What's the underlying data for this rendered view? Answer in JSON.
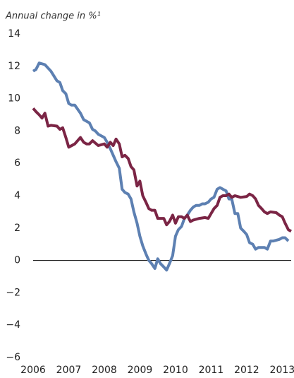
{
  "chart_data": {
    "type": "line",
    "subtitle": "Annual change in %¹",
    "xlim": [
      2006,
      2013.25
    ],
    "xticks": [
      2006,
      2007,
      2008,
      2009,
      2010,
      2011,
      2012,
      2013
    ],
    "ylim": [
      -6,
      14
    ],
    "yticks": [
      {
        "value": -6,
        "label": "−6"
      },
      {
        "value": -4,
        "label": "−4"
      },
      {
        "value": -2,
        "label": "−2"
      },
      0,
      2,
      4,
      6,
      8,
      10,
      12,
      14
    ],
    "zero_line": true,
    "series": [
      {
        "color": "#5d80b2",
        "x": [
          2006.0,
          2006.08,
          2006.17,
          2006.33,
          2006.5,
          2006.67,
          2006.75,
          2006.83,
          2006.92,
          2007.0,
          2007.08,
          2007.17,
          2007.33,
          2007.42,
          2007.58,
          2007.67,
          2007.75,
          2007.83,
          2008.0,
          2008.08,
          2008.17,
          2008.25,
          2008.33,
          2008.42,
          2008.5,
          2008.58,
          2008.67,
          2008.75,
          2008.83,
          2008.92,
          2009.0,
          2009.08,
          2009.17,
          2009.25,
          2009.33,
          2009.42,
          2009.5,
          2009.58,
          2009.67,
          2009.75,
          2009.83,
          2009.92,
          2010.0,
          2010.08,
          2010.17,
          2010.25,
          2010.33,
          2010.42,
          2010.5,
          2010.58,
          2010.67,
          2010.75,
          2010.83,
          2010.92,
          2011.0,
          2011.08,
          2011.17,
          2011.25,
          2011.33,
          2011.42,
          2011.5,
          2011.58,
          2011.67,
          2011.75,
          2011.83,
          2011.92,
          2012.0,
          2012.08,
          2012.17,
          2012.25,
          2012.33,
          2012.5,
          2012.58,
          2012.67,
          2012.75,
          2012.92,
          2013.0,
          2013.08,
          2013.17
        ],
        "values": [
          11.7,
          11.8,
          12.2,
          12.1,
          11.7,
          11.1,
          11.0,
          10.5,
          10.3,
          9.7,
          9.6,
          9.6,
          9.1,
          8.7,
          8.5,
          8.1,
          8.0,
          7.8,
          7.6,
          7.3,
          6.9,
          6.5,
          6.1,
          5.7,
          4.4,
          4.2,
          4.1,
          3.8,
          3.0,
          2.3,
          1.5,
          0.9,
          0.4,
          0.0,
          -0.2,
          -0.5,
          0.1,
          -0.2,
          -0.4,
          -0.6,
          -0.2,
          0.3,
          1.5,
          1.9,
          2.1,
          2.6,
          2.8,
          3.1,
          3.3,
          3.4,
          3.4,
          3.5,
          3.5,
          3.6,
          3.8,
          3.9,
          4.4,
          4.5,
          4.4,
          4.3,
          3.8,
          3.8,
          2.9,
          2.9,
          2.0,
          1.8,
          1.6,
          1.1,
          1.0,
          0.7,
          0.8,
          0.8,
          0.7,
          1.2,
          1.2,
          1.3,
          1.4,
          1.4,
          1.2
        ]
      },
      {
        "color": "#7b2545",
        "x": [
          2006.0,
          2006.08,
          2006.17,
          2006.25,
          2006.33,
          2006.42,
          2006.5,
          2006.67,
          2006.75,
          2006.83,
          2006.92,
          2007.0,
          2007.17,
          2007.33,
          2007.42,
          2007.5,
          2007.58,
          2007.67,
          2007.83,
          2008.0,
          2008.08,
          2008.17,
          2008.25,
          2008.33,
          2008.42,
          2008.5,
          2008.58,
          2008.67,
          2008.75,
          2008.83,
          2008.92,
          2009.0,
          2009.08,
          2009.17,
          2009.25,
          2009.33,
          2009.42,
          2009.5,
          2009.58,
          2009.67,
          2009.75,
          2009.83,
          2009.92,
          2010.0,
          2010.08,
          2010.17,
          2010.25,
          2010.33,
          2010.42,
          2010.5,
          2010.67,
          2010.83,
          2010.92,
          2011.0,
          2011.08,
          2011.17,
          2011.25,
          2011.33,
          2011.42,
          2011.5,
          2011.58,
          2011.67,
          2011.83,
          2012.0,
          2012.08,
          2012.17,
          2012.25,
          2012.33,
          2012.42,
          2012.5,
          2012.58,
          2012.67,
          2012.83,
          2012.92,
          2013.0,
          2013.08,
          2013.17,
          2013.25
        ],
        "values": [
          9.4,
          9.2,
          9.0,
          8.8,
          9.1,
          8.3,
          8.35,
          8.3,
          8.1,
          8.2,
          7.6,
          7.0,
          7.2,
          7.6,
          7.3,
          7.2,
          7.2,
          7.4,
          7.1,
          7.2,
          7.0,
          7.3,
          7.1,
          7.5,
          7.2,
          6.4,
          6.5,
          6.3,
          5.8,
          5.6,
          4.6,
          4.9,
          4.0,
          3.6,
          3.2,
          3.1,
          3.1,
          2.6,
          2.6,
          2.6,
          2.2,
          2.4,
          2.8,
          2.3,
          2.7,
          2.7,
          2.6,
          2.8,
          2.4,
          2.5,
          2.6,
          2.65,
          2.6,
          2.9,
          3.2,
          3.4,
          3.9,
          4.0,
          4.0,
          4.1,
          3.9,
          4.0,
          3.9,
          3.95,
          4.1,
          4.0,
          3.8,
          3.4,
          3.2,
          3.0,
          2.9,
          3.0,
          2.95,
          2.8,
          2.7,
          2.3,
          1.9,
          1.8
        ]
      }
    ]
  }
}
